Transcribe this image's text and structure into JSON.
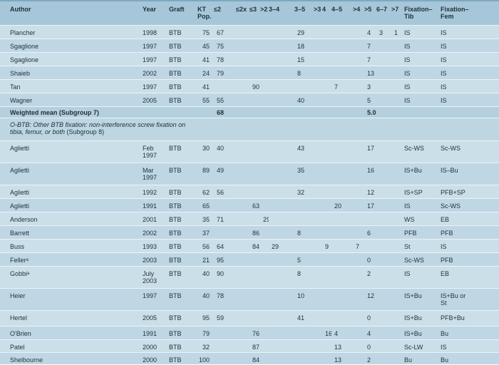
{
  "table": {
    "columns": [
      {
        "key": "author",
        "label": "Author"
      },
      {
        "key": "year",
        "label": "Year"
      },
      {
        "key": "graft",
        "label": "Graft"
      },
      {
        "key": "kt",
        "label": "KT\nPop."
      },
      {
        "key": "le2",
        "label": "≤2"
      },
      {
        "key": "le2x",
        "label": "≤2x"
      },
      {
        "key": "le3",
        "label": "≤3"
      },
      {
        "key": "gt2",
        "label": ">2"
      },
      {
        "key": "r34",
        "label": "3–4"
      },
      {
        "key": "r35",
        "label": "3–5"
      },
      {
        "key": "gt3",
        "label": ">3"
      },
      {
        "key": "c4",
        "label": "4"
      },
      {
        "key": "r45",
        "label": "4–5"
      },
      {
        "key": "gt4",
        "label": ">4"
      },
      {
        "key": "gt5",
        "label": ">5"
      },
      {
        "key": "r67",
        "label": "6–7"
      },
      {
        "key": "gt7",
        "label": ">7"
      },
      {
        "key": "fixtib",
        "label": "Fixation–\nTib"
      },
      {
        "key": "fixfem",
        "label": "Fixation–\nFem"
      }
    ],
    "rows": [
      {
        "type": "data",
        "author": "Plancher",
        "year": "1998",
        "graft": "BTB",
        "kt": "75",
        "le2": "67",
        "r35": "29",
        "gt5": "4",
        "r67": "3",
        "gt7": "1",
        "fixtib": "IS",
        "fixfem": "IS"
      },
      {
        "type": "data",
        "author": "Sgaglione",
        "year": "1997",
        "graft": "BTB",
        "kt": "45",
        "le2": "75",
        "r35": "18",
        "gt5": "7",
        "fixtib": "IS",
        "fixfem": "IS"
      },
      {
        "type": "data",
        "author": "Sgaglione",
        "year": "1997",
        "graft": "BTB",
        "kt": "41",
        "le2": "78",
        "r35": "15",
        "gt5": "7",
        "fixtib": "IS",
        "fixfem": "IS"
      },
      {
        "type": "data",
        "author": "Shaieb",
        "year": "2002",
        "graft": "BTB",
        "kt": "24",
        "le2": "79",
        "r35": "8",
        "gt5": "13",
        "fixtib": "IS",
        "fixfem": "IS"
      },
      {
        "type": "data",
        "author": "Tan",
        "year": "1997",
        "graft": "BTB",
        "kt": "41",
        "le3": "90",
        "r45": "7",
        "gt5": "3",
        "fixtib": "IS",
        "fixfem": "IS"
      },
      {
        "type": "data",
        "author": "Wagner",
        "year": "2005",
        "graft": "BTB",
        "kt": "55",
        "le2": "55",
        "r35": "40",
        "gt5": "5",
        "fixtib": "IS",
        "fixfem": "IS"
      },
      {
        "type": "mean",
        "author": "Weighted mean (Subgroup 7)",
        "le2": "68",
        "gt5": "5.0"
      },
      {
        "type": "note",
        "line1": "O-BTB: Other BTB fixation: non-interference screw fixation on",
        "line2_italic": "tibia, femur, or both",
        "line2_roman": " (Subgroup 8)"
      },
      {
        "type": "data",
        "author": "Aglietti",
        "year": "Feb\n1997",
        "graft": "BTB",
        "kt": "30",
        "le2": "40",
        "r35": "43",
        "gt5": "17",
        "fixtib": "Sc-WS",
        "fixfem": "Sc-WS"
      },
      {
        "type": "data",
        "author": "Aglietti",
        "year": "Mar\n1997",
        "graft": "BTB",
        "kt": "89",
        "le2": "49",
        "r35": "35",
        "gt5": "16",
        "fixtib": "IS+Bu",
        "fixfem": "IS–Bu"
      },
      {
        "type": "data",
        "author": "Aglietti",
        "year": "1992",
        "graft": "BTB",
        "kt": "62",
        "le2": "56",
        "r35": "32",
        "gt5": "12",
        "fixtib": "IS+SP",
        "fixfem": "PFB+SP"
      },
      {
        "type": "data",
        "author": "Aglietti",
        "year": "1991",
        "graft": "BTB",
        "kt": "65",
        "le3": "63",
        "r45": "20",
        "gt5": "17",
        "fixtib": "IS",
        "fixfem": "Sc-WS"
      },
      {
        "type": "data",
        "author": "Anderson",
        "year": "2001",
        "graft": "BTB",
        "kt": "35",
        "le2": "71",
        "gt2": "29",
        "fixtib": "WS",
        "fixfem": "EB"
      },
      {
        "type": "data",
        "author": "Barrett",
        "year": "2002",
        "graft": "BTB",
        "kt": "37",
        "le3": "86",
        "r35": "8",
        "gt5": "6",
        "fixtib": "PFB",
        "fixfem": "PFB"
      },
      {
        "type": "data",
        "author": "Buss",
        "year": "1993",
        "graft": "BTB",
        "kt": "56",
        "le2": "64",
        "le3": "84",
        "r34": "29",
        "c4": "9",
        "gt4": "7",
        "fixtib": "St",
        "fixfem": "IS"
      },
      {
        "type": "data",
        "author": "Fellerᵃ",
        "year": "2003",
        "graft": "BTB",
        "kt": "21",
        "le2": "95",
        "r35": "5",
        "gt5": "0",
        "fixtib": "Sc-WS",
        "fixfem": "PFB"
      },
      {
        "type": "data",
        "author": "Gobbiᵃ",
        "year": "July\n2003",
        "graft": "BTB",
        "kt": "40",
        "le2": "90",
        "r35": "8",
        "gt5": "2",
        "fixtib": "IS",
        "fixfem": "EB"
      },
      {
        "type": "data",
        "author": "Heier",
        "year": "1997",
        "graft": "BTB",
        "kt": "40",
        "le2": "78",
        "r35": "10",
        "gt5": "12",
        "fixtib": "IS+Bu",
        "fixfem": "IS+Bu or\nSt"
      },
      {
        "type": "data",
        "author": "Hertel",
        "year": "2005",
        "graft": "BTB",
        "kt": "95",
        "le2": "59",
        "r35": "41",
        "gt5": "0",
        "fixtib": "IS+Bu",
        "fixfem": "PFB+Bu"
      },
      {
        "type": "data",
        "author": "O'Brien",
        "year": "1991",
        "graft": "BTB",
        "kt": "79",
        "le3": "76",
        "c4": "16",
        "r45": "4",
        "gt5": "4",
        "fixtib": "IS+Bu",
        "fixfem": "Bu"
      },
      {
        "type": "data",
        "author": "Patel",
        "year": "2000",
        "graft": "BTB",
        "kt": "32",
        "le3": "87",
        "r45": "13",
        "gt5": "0",
        "fixtib": "Sc-LW",
        "fixfem": "IS"
      },
      {
        "type": "data",
        "author": "Shelbourne",
        "year": "2000",
        "graft": "BTB",
        "kt": "100",
        "le3": "84",
        "r45": "13",
        "gt5": "2",
        "fixtib": "Bu",
        "fixfem": "Bu"
      }
    ]
  },
  "colors": {
    "header_bg": "#a6c7d9",
    "row_light": "#cbdfe9",
    "row_dark": "#bfd7e4",
    "summary_bg": "#b4d0de",
    "note_bg": "#bdd6e2",
    "top_border": "#7fa9bf",
    "text": "#1f3038",
    "divider": "#ecf3f7"
  }
}
